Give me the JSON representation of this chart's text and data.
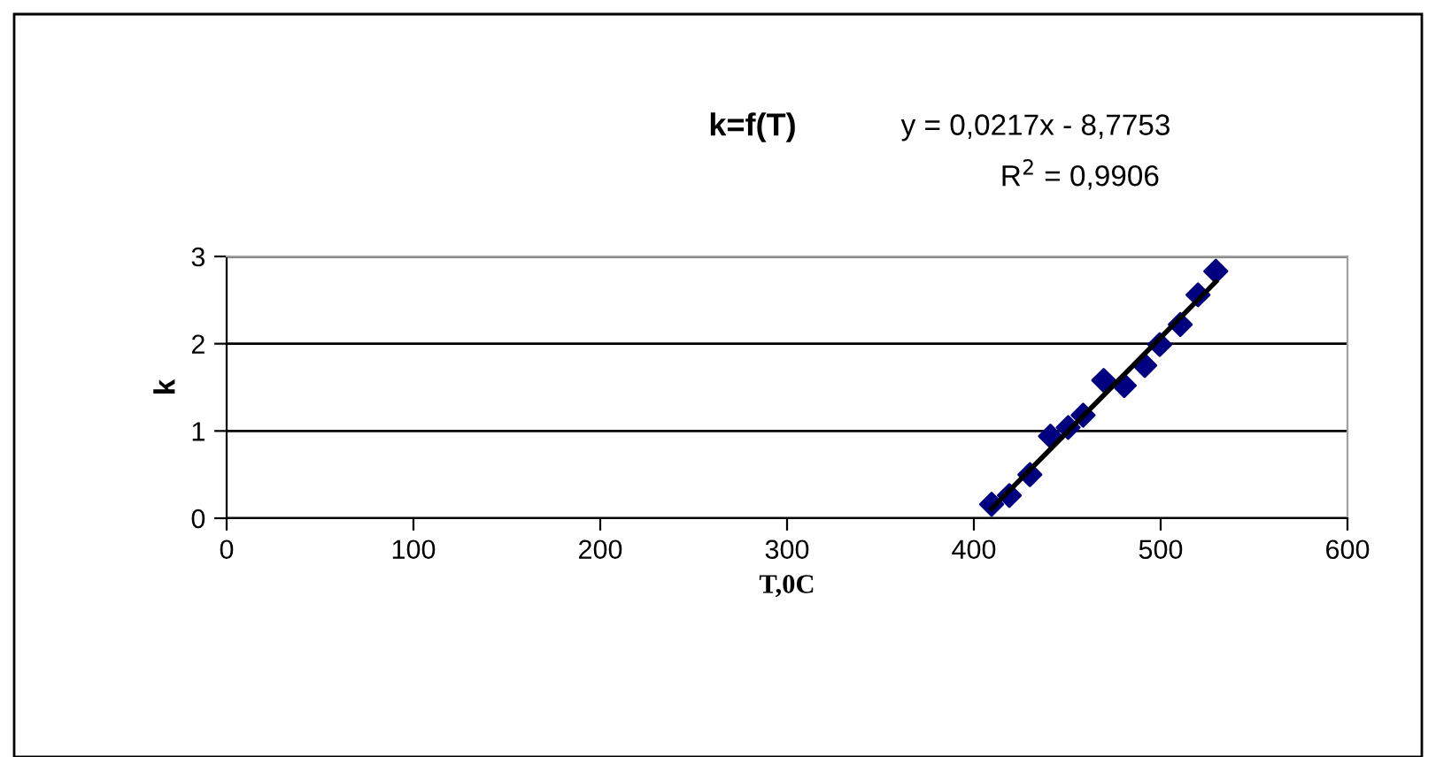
{
  "chart_data": {
    "type": "scatter",
    "title": "k=f(T)",
    "xlabel": "T,0C",
    "ylabel": "k",
    "annotations": [
      "y = 0,0217x - 8,7753",
      "R$^{2}$ = 0,9906"
    ],
    "series": [
      {
        "color": "#000080",
        "marker": "diamond",
        "x": [
          409.5,
          419,
          430,
          441,
          450.5,
          458.5,
          469.5,
          480.5,
          491.5,
          499.5,
          510.5,
          520,
          529.5
        ],
        "values": [
          0.16,
          0.26,
          0.5,
          0.94,
          1.04,
          1.18,
          1.58,
          1.52,
          1.75,
          1.99,
          2.22,
          2.56,
          2.83
        ]
      },
      {
        "type": "line",
        "color": "#000000",
        "line_style": "solid",
        "x": [
          409.5,
          529.5
        ],
        "values": [
          0.11,
          2.71
        ]
      }
    ],
    "xlim": [
      0,
      600
    ],
    "xticks": [
      0,
      100,
      200,
      300,
      400,
      500,
      600
    ],
    "ylim": [
      0,
      3
    ],
    "yticks": [
      0,
      1,
      2,
      3
    ],
    "grid": "y",
    "legend": false
  }
}
